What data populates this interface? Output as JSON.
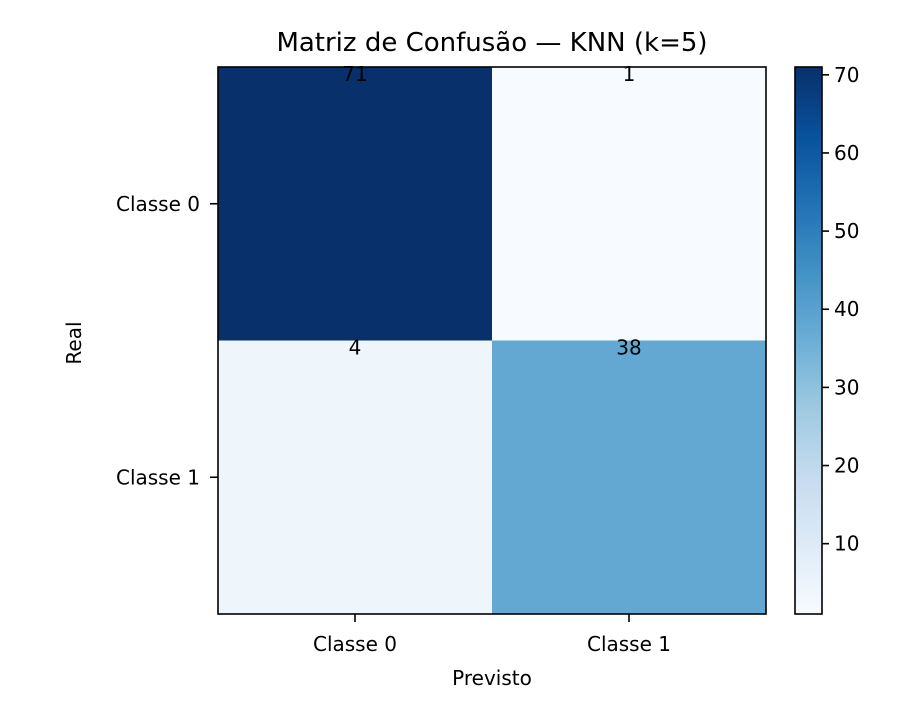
{
  "chart_data": {
    "type": "heatmap",
    "title": "Matriz de Confusão — KNN (k=5)",
    "xlabel": "Previsto",
    "ylabel": "Real",
    "x_categories": [
      "Classe 0",
      "Classe 1"
    ],
    "y_categories": [
      "Classe 0",
      "Classe 1"
    ],
    "values": [
      [
        71,
        1
      ],
      [
        4,
        38
      ]
    ],
    "colormap": "Blues",
    "colorbar": {
      "min": 1,
      "max": 71,
      "ticks": [
        10,
        20,
        30,
        40,
        50,
        60,
        70
      ],
      "tick_labels": [
        "10",
        "20",
        "30",
        "40",
        "50",
        "60",
        "70"
      ]
    },
    "grid": false
  }
}
